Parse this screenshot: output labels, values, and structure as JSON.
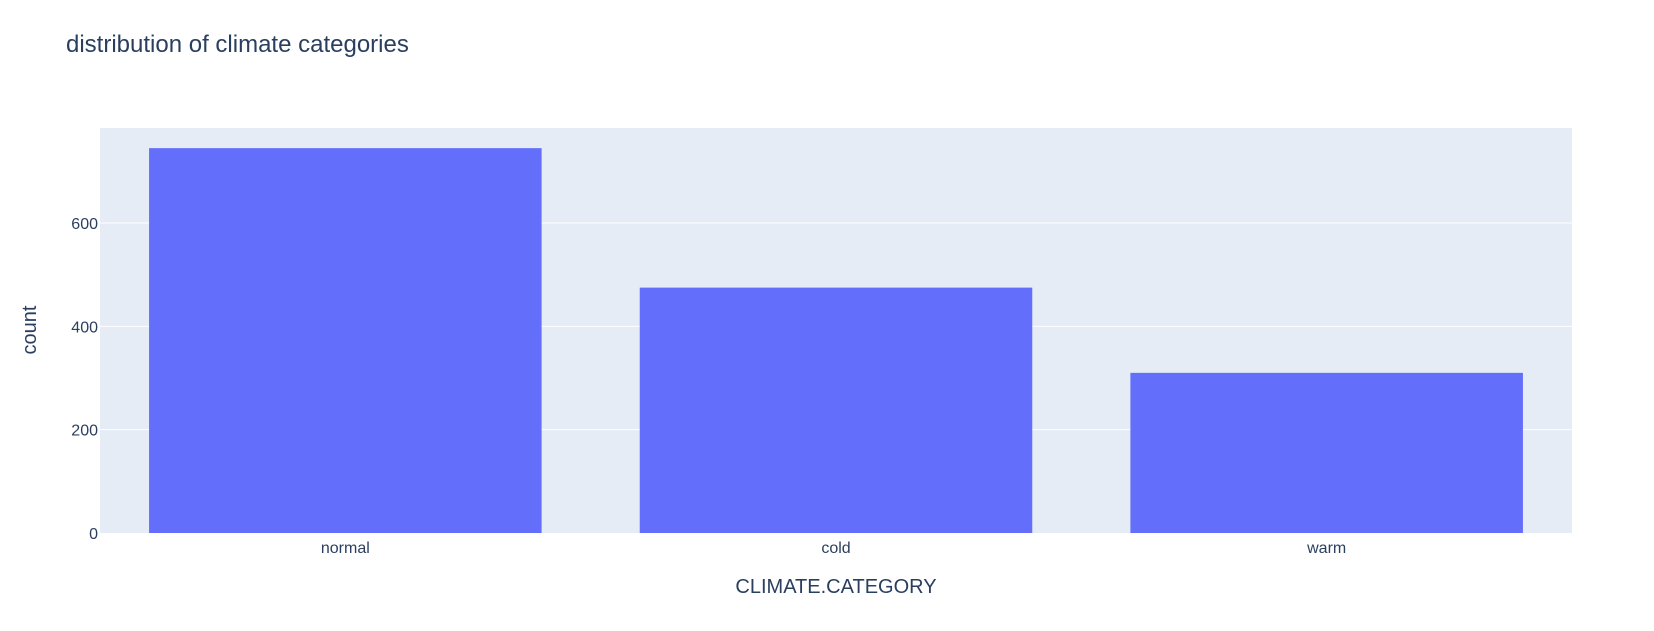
{
  "chart_data": {
    "type": "bar",
    "title": "distribution of climate categories",
    "xlabel": "CLIMATE.CATEGORY",
    "ylabel": "count",
    "categories": [
      "normal",
      "cold",
      "warm"
    ],
    "values": [
      745,
      475,
      310
    ],
    "ylim": [
      0,
      784
    ],
    "yticks": [
      0,
      200,
      400,
      600
    ],
    "grid": true,
    "legend": "none",
    "colors": {
      "bar": "#636efa",
      "plot_background": "#e5ecf6",
      "gridline": "#ffffff",
      "text": "#2a3f5f"
    }
  }
}
